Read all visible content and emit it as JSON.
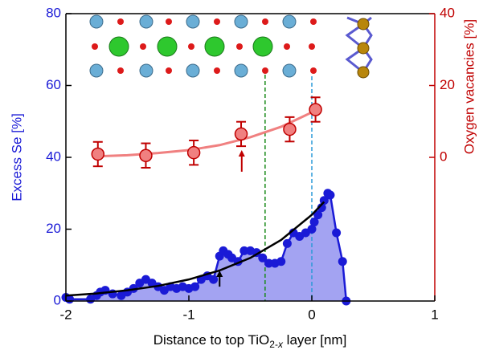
{
  "chart_data": {
    "type": "scatter",
    "ylabel": "Excess Se [%]",
    "y2label": "Oxygen vacancies [%]",
    "xlabel_parts": [
      "Distance to top TiO",
      "2-",
      "x",
      " layer [nm]"
    ],
    "xlim": [
      -2,
      1
    ],
    "xticks": [
      -2,
      -1,
      0,
      1
    ],
    "ylim": [
      0,
      80
    ],
    "yticks": [
      0,
      20,
      40,
      60,
      80
    ],
    "y2lim": [
      -40,
      40
    ],
    "y2ticks": [
      0,
      20,
      40
    ],
    "excess_se": {
      "color": "#1a1ad6",
      "fill": "#a3a3f2",
      "x": [
        -2.0,
        -1.97,
        -1.8,
        -1.75,
        -1.72,
        -1.68,
        -1.62,
        -1.55,
        -1.5,
        -1.45,
        -1.4,
        -1.35,
        -1.3,
        -1.25,
        -1.2,
        -1.15,
        -1.1,
        -1.05,
        -1.0,
        -0.95,
        -0.9,
        -0.85,
        -0.8,
        -0.75,
        -0.72,
        -0.68,
        -0.65,
        -0.6,
        -0.55,
        -0.5,
        -0.45,
        -0.4,
        -0.35,
        -0.3,
        -0.25,
        -0.2,
        -0.15,
        -0.1,
        -0.05,
        0.0,
        0.02,
        0.05,
        0.08,
        0.1,
        0.13,
        0.15,
        0.2,
        0.25,
        0.28
      ],
      "values": [
        1,
        0.5,
        0.5,
        1.5,
        2.5,
        3,
        2,
        1.5,
        2.5,
        3.5,
        5,
        6,
        5,
        4,
        3,
        4,
        3.5,
        4,
        3.5,
        4,
        6,
        7,
        6,
        12.5,
        14,
        13,
        12,
        11,
        14,
        14,
        13.5,
        12,
        10.5,
        10.5,
        11,
        16,
        19,
        18,
        19,
        20,
        22,
        24,
        26,
        28,
        30,
        29.5,
        19,
        11,
        0
      ]
    },
    "se_fit": {
      "color": "#000000",
      "x": [
        -2,
        -1.75,
        -1.5,
        -1.25,
        -1,
        -0.75,
        -0.5,
        -0.25,
        0,
        0.1
      ],
      "values": [
        1.5,
        2.1,
        3.0,
        4.2,
        6.0,
        8.5,
        12.0,
        17.0,
        24.0,
        27.6
      ]
    },
    "vacancies": {
      "color": "#f08080",
      "edge": "#c00000",
      "axis": "y2",
      "x": [
        -1.74,
        -1.35,
        -0.96,
        -0.575,
        -0.18,
        0.03
      ],
      "values": [
        0.9,
        0.5,
        1.3,
        6.5,
        7.8,
        13.3
      ],
      "errors": [
        3.4,
        3.4,
        3.4,
        3.4,
        3.4,
        3.4
      ]
    },
    "vac_fit": {
      "color": "#f08080",
      "axis": "y2",
      "x": [
        -1.74,
        -1.5,
        -1.25,
        -1.0,
        -0.75,
        -0.5,
        -0.25,
        0.03
      ],
      "values": [
        0.3,
        0.6,
        1.2,
        2.0,
        3.4,
        5.6,
        8.5,
        13.0
      ]
    },
    "vlines": [
      {
        "x": -0.38,
        "color": "#1a8a1a"
      },
      {
        "x": 0,
        "color": "#2a9ad8"
      }
    ],
    "arrows": [
      {
        "x": -0.57,
        "from": -4,
        "to": 2,
        "axis": "y2",
        "color": "#c00000"
      },
      {
        "x": -0.75,
        "from": 4,
        "to": 8.5,
        "axis": "y",
        "color": "#000000"
      }
    ]
  }
}
